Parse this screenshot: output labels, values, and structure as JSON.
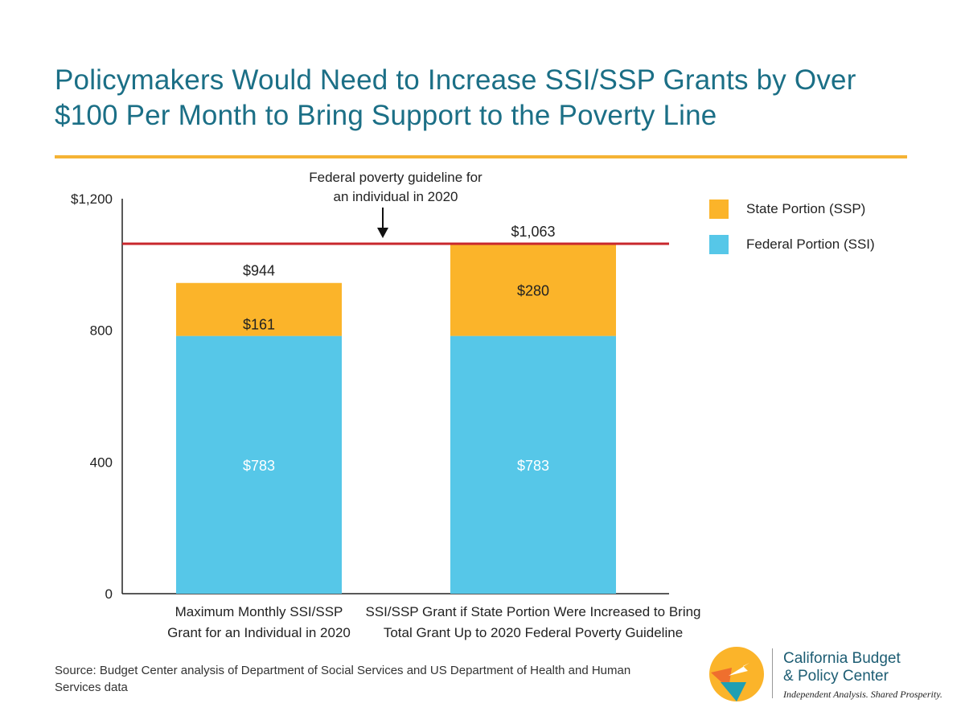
{
  "title": {
    "line1": "Policymakers Would Need to Increase SSI/SSP Grants by Over",
    "line2": "$100 Per Month to Bring Support to the Poverty Line"
  },
  "colors": {
    "title": "#1b6f86",
    "rule": "#f5b335",
    "federal": "#56c7e8",
    "state": "#fbb42a",
    "poverty_line": "#c8272d"
  },
  "chart_data": {
    "type": "bar",
    "stacked": true,
    "categories": [
      [
        "Maximum Monthly SSI/SSP",
        "Grant for an Individual in 2020"
      ],
      [
        "SSI/SSP Grant if State Portion Were Increased to Bring",
        "Total Grant Up to 2020 Federal Poverty Guideline"
      ]
    ],
    "series": [
      {
        "name": "Federal Portion (SSI)",
        "values": [
          783,
          783
        ],
        "labels": [
          "$783",
          "$783"
        ]
      },
      {
        "name": "State Portion (SSP)",
        "values": [
          161,
          280
        ],
        "labels": [
          "$161",
          "$280"
        ]
      }
    ],
    "totals": [
      944,
      1063
    ],
    "total_labels": [
      "$944",
      "$1,063"
    ],
    "ylim": [
      0,
      1200
    ],
    "yticks": [
      0,
      400,
      800,
      1200
    ],
    "ytick_labels": [
      "0",
      "400",
      "800",
      "$1,200"
    ],
    "reference_line": {
      "value": 1063,
      "annotation": [
        "Federal poverty guideline for",
        "an individual in 2020"
      ]
    },
    "legend": {
      "position": "top-right",
      "entries": [
        "State Portion (SSP)",
        "Federal Portion (SSI)"
      ]
    },
    "grid": false
  },
  "source": "Source: Budget Center analysis of Department of Social Services and US Department of Health and Human Services data",
  "logo": {
    "name_line1": "California Budget",
    "name_line2": "& Policy Center",
    "tagline": "Independent Analysis. Shared Prosperity."
  }
}
